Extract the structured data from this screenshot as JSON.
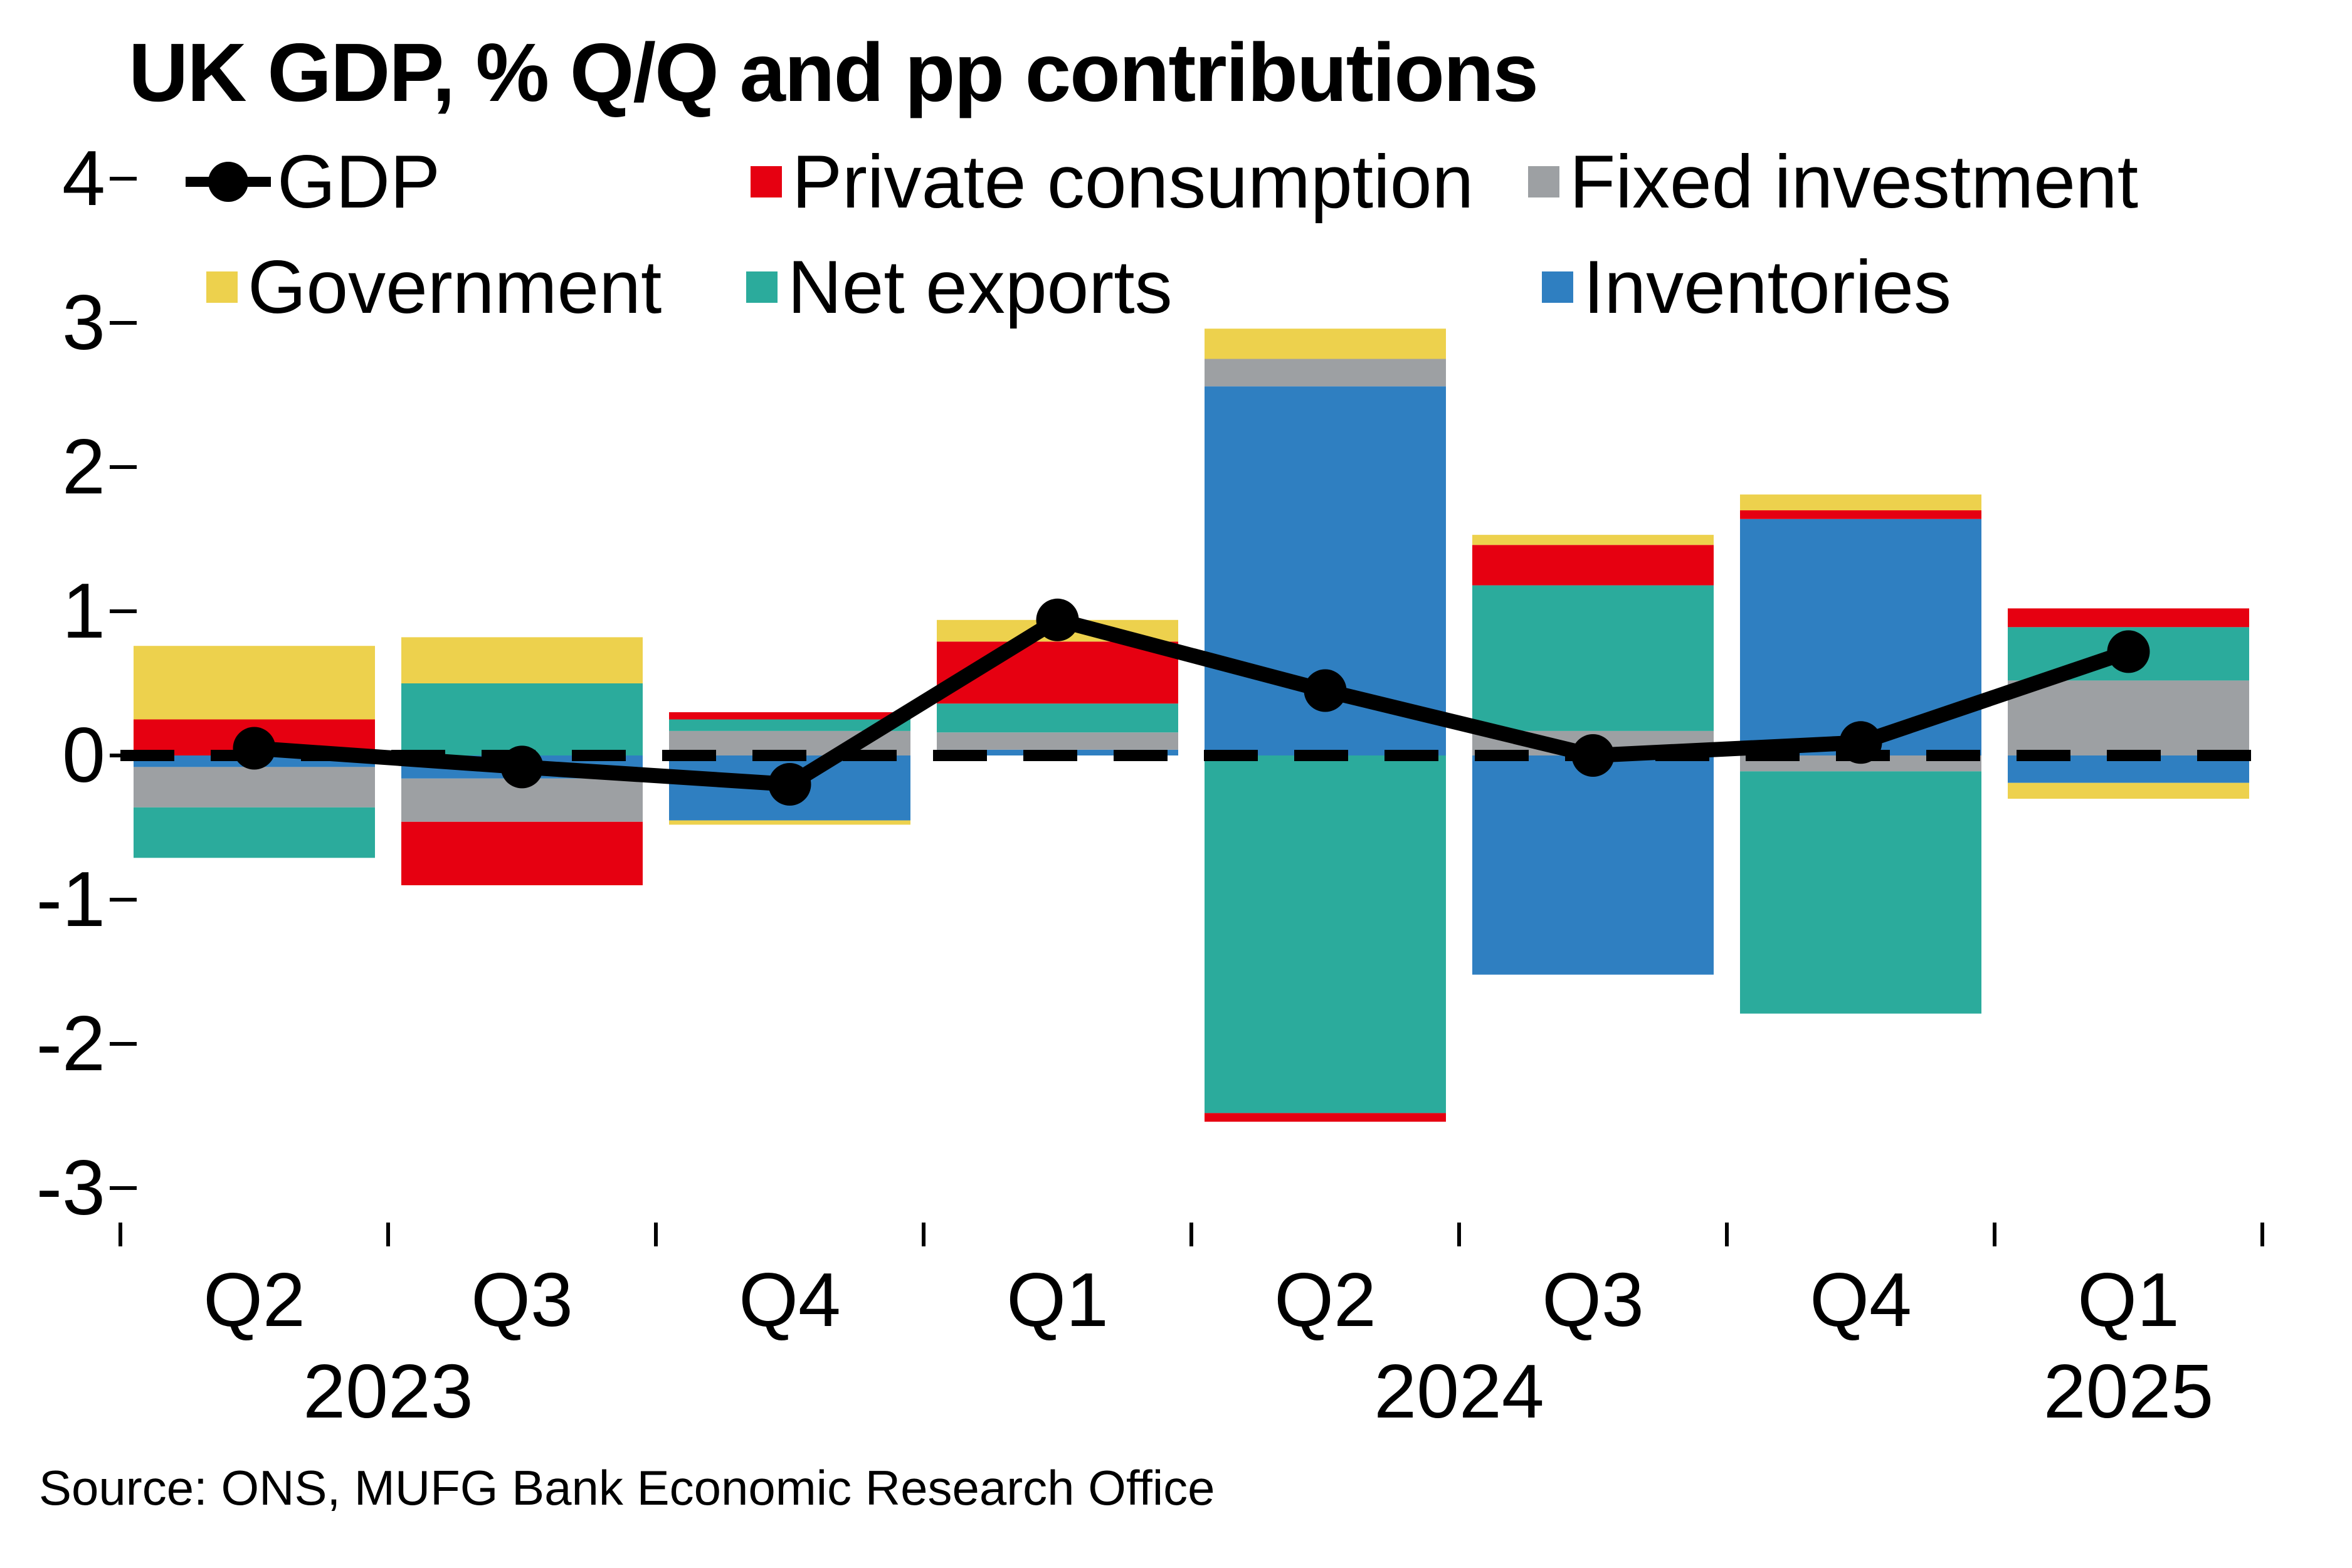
{
  "title": "UK GDP, % Q/Q and pp contributions",
  "source": "Source: ONS, MUFG Bank Economic Research Office",
  "colors": {
    "gdp": "#000000",
    "private_consumption": "#E60011",
    "fixed_investment": "#9DA0A3",
    "government": "#EDD14D",
    "net_exports": "#2BAB9C",
    "inventories": "#2F7FC1",
    "zero_line": "#000000"
  },
  "legend": {
    "gdp": "GDP",
    "private_consumption": "Private consumption",
    "fixed_investment": "Fixed investment",
    "government": "Government",
    "net_exports": "Net exports",
    "inventories": "Inventories"
  },
  "chart_data": {
    "type": "bar",
    "subtype": "stacked-bars-with-line-overlay",
    "categories": [
      "Q2",
      "Q3",
      "Q4",
      "Q1",
      "Q2",
      "Q3",
      "Q4",
      "Q1"
    ],
    "year_labels": [
      {
        "label": "2023",
        "anchor": "boundary",
        "index": 1
      },
      {
        "label": "2024",
        "anchor": "boundary",
        "index": 5
      },
      {
        "label": "2025",
        "anchor": "category",
        "index": 7
      }
    ],
    "series": [
      {
        "key": "private_consumption",
        "name": "Private consumption",
        "values": [
          0.25,
          -0.44,
          0.05,
          0.43,
          -0.06,
          0.28,
          0.06,
          0.13
        ]
      },
      {
        "key": "fixed_investment",
        "name": "Fixed investment",
        "values": [
          -0.28,
          -0.3,
          0.17,
          0.12,
          0.19,
          0.17,
          -0.11,
          0.52
        ]
      },
      {
        "key": "government",
        "name": "Government",
        "values": [
          0.51,
          0.32,
          -0.03,
          0.15,
          0.21,
          0.07,
          0.11,
          -0.11
        ]
      },
      {
        "key": "net_exports",
        "name": "Net exports",
        "values": [
          -0.35,
          0.5,
          0.08,
          0.2,
          -2.48,
          1.01,
          -1.68,
          0.37
        ]
      },
      {
        "key": "inventories",
        "name": "Inventories",
        "values": [
          -0.08,
          -0.16,
          -0.45,
          0.04,
          2.56,
          -1.52,
          1.64,
          -0.19
        ]
      }
    ],
    "stack_order": [
      "inventories",
      "fixed_investment",
      "net_exports",
      "private_consumption",
      "government"
    ],
    "line_series": {
      "key": "gdp",
      "name": "GDP",
      "values": [
        0.05,
        -0.08,
        -0.2,
        0.94,
        0.45,
        0.0,
        0.09,
        0.72
      ]
    },
    "yticks": [
      4,
      3,
      2,
      1,
      0,
      -1,
      -2,
      -3
    ],
    "ylim": [
      -3.25,
      4.35
    ],
    "zero_line": "dashed",
    "grid": false,
    "legend_position": "top"
  }
}
